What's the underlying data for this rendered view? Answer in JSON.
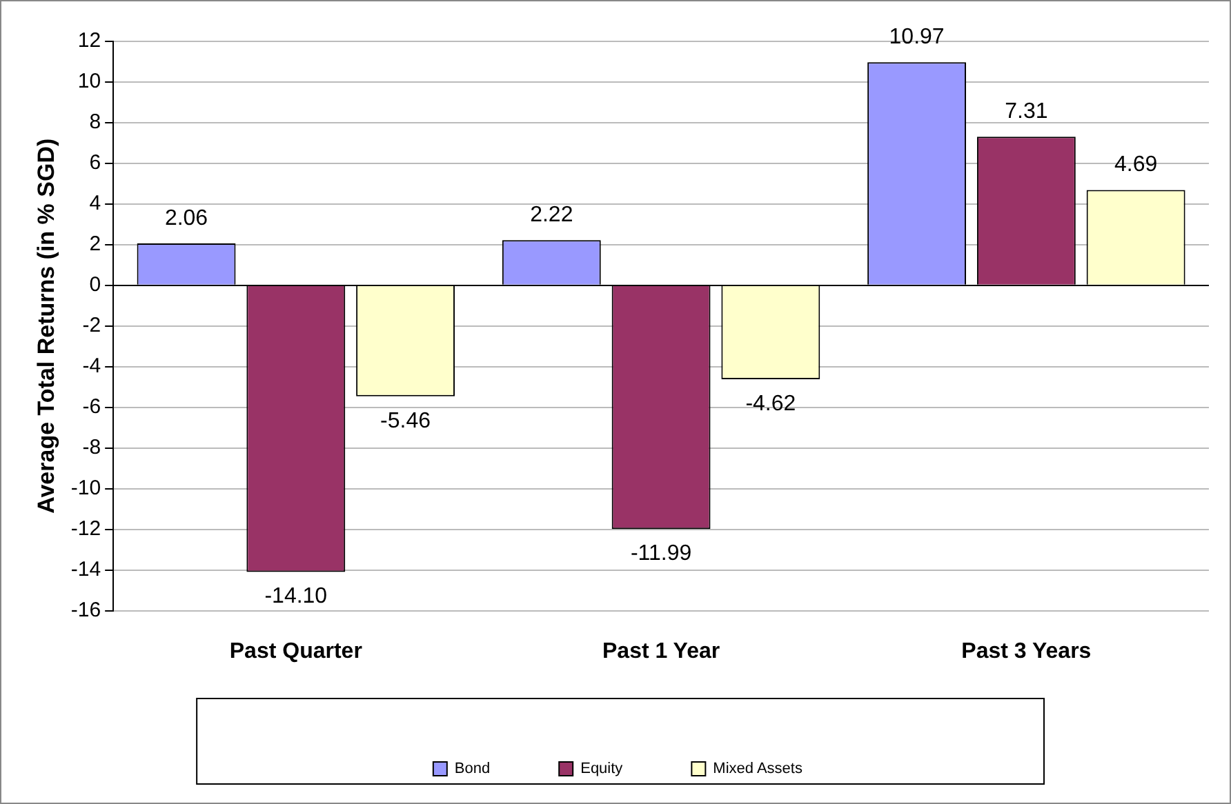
{
  "chart_data": {
    "type": "bar",
    "ylabel": "Average Total Returns (in % SGD)",
    "categories": [
      "Past Quarter",
      "Past 1 Year",
      "Past 3 Years"
    ],
    "series": [
      {
        "name": "Bond",
        "color": "#9999ff",
        "values": [
          2.06,
          2.22,
          10.97
        ]
      },
      {
        "name": "Equity",
        "color": "#993366",
        "values": [
          -14.1,
          -11.99,
          7.31
        ]
      },
      {
        "name": "Mixed Assets",
        "color": "#ffffcc",
        "values": [
          -5.46,
          -4.62,
          4.69
        ]
      }
    ],
    "value_labels": [
      [
        "2.06",
        "2.22",
        "10.97"
      ],
      [
        "-14.10",
        "-11.99",
        "7.31"
      ],
      [
        "-5.46",
        "-4.62",
        "4.69"
      ]
    ],
    "ylim": [
      -16,
      12
    ],
    "yticks": [
      -16,
      -14,
      -12,
      -10,
      -8,
      -6,
      -4,
      -2,
      0,
      2,
      4,
      6,
      8,
      10,
      12
    ],
    "grid": "y",
    "legend": "bottom"
  }
}
